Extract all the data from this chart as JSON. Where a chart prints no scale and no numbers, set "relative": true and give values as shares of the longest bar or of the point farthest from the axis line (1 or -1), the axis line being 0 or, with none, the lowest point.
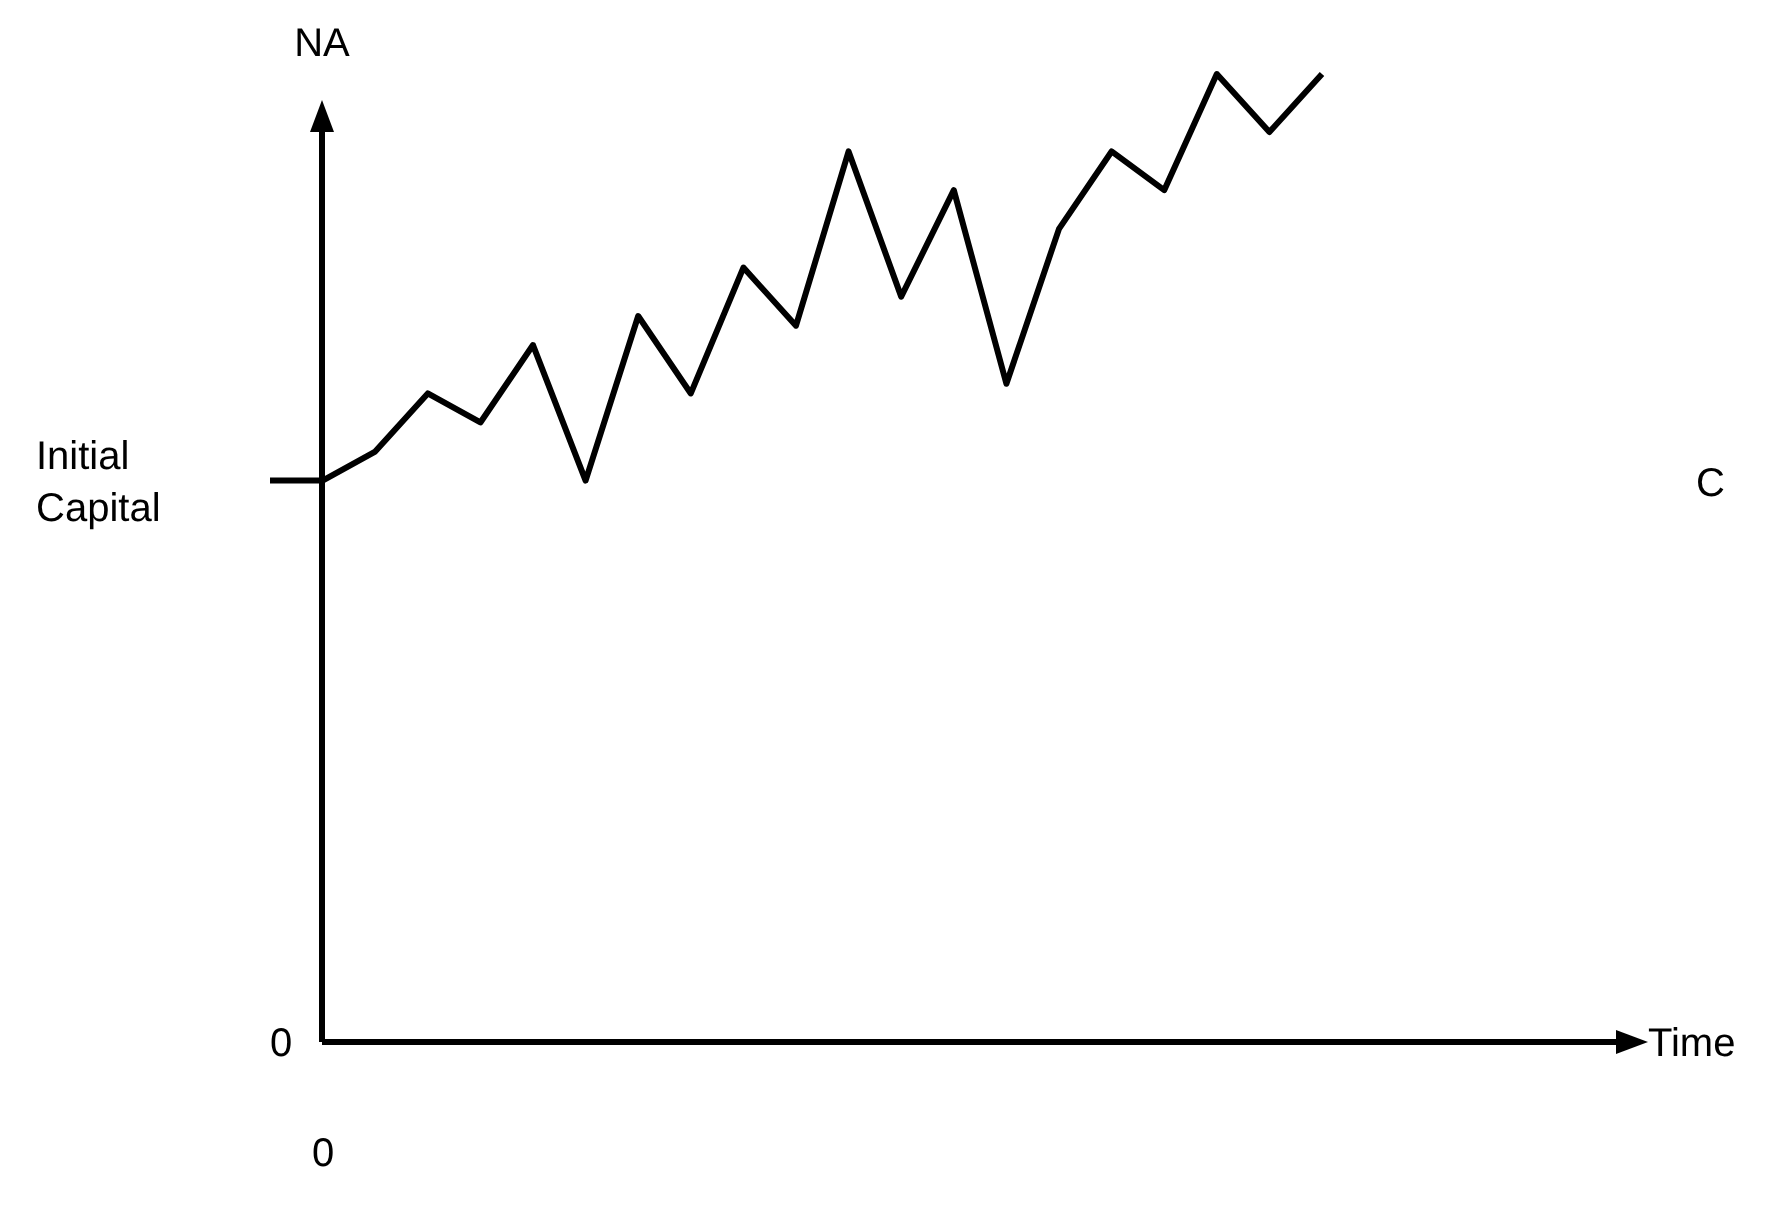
{
  "chart_data": {
    "type": "line",
    "relative": true,
    "ylabel": "NA",
    "categories": [
      null,
      null,
      null,
      null,
      null,
      null,
      null,
      null,
      null,
      null,
      null,
      null,
      null,
      null,
      null,
      null,
      null,
      null,
      null,
      null,
      null
    ],
    "series": [
      {
        "color": "#000000",
        "values": [
          0.58,
          0.58,
          0.61,
          0.67,
          0.64,
          0.72,
          0.58,
          0.75,
          0.67,
          0.8,
          0.74,
          0.92,
          0.77,
          0.88,
          0.68,
          0.84,
          0.92,
          0.88,
          1,
          0.94,
          1
        ]
      }
    ],
    "annotations": [
      "Initial Capital",
      "0",
      "0",
      "C",
      "Time"
    ],
    "marker": "none",
    "line_style": "solid"
  }
}
